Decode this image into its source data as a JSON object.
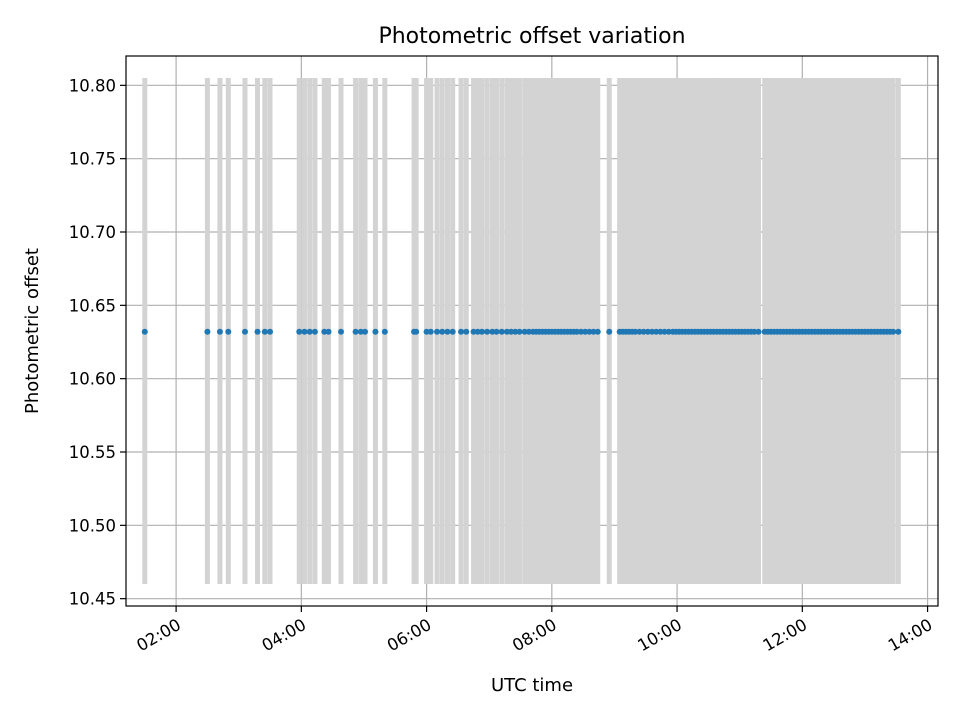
{
  "chart_data": {
    "type": "scatter",
    "title": "Photometric offset variation",
    "xlabel": "UTC time",
    "ylabel": "Photometric offset",
    "xlim": [
      "01:12",
      "14:10"
    ],
    "ylim": [
      10.445,
      10.82
    ],
    "x_ticks": [
      "02:00",
      "04:00",
      "06:00",
      "08:00",
      "10:00",
      "12:00",
      "14:00"
    ],
    "y_ticks": [
      "10.45",
      "10.50",
      "10.55",
      "10.60",
      "10.65",
      "10.70",
      "10.75",
      "10.80"
    ],
    "grid": true,
    "colors": {
      "points": "#1f77b4",
      "spans": "#d3d3d3",
      "grid": "#b0b0b0"
    },
    "span_y_range": [
      10.46,
      10.805
    ],
    "marker_value": 10.632,
    "times": [
      "01:30",
      "02:30",
      "02:42",
      "02:50",
      "03:06",
      "03:18",
      "03:25",
      "03:30",
      "03:58",
      "04:03",
      "04:08",
      "04:13",
      "04:22",
      "04:26",
      "04:38",
      "04:52",
      "04:57",
      "05:01",
      "05:11",
      "05:20",
      "05:48",
      "05:50",
      "06:00",
      "06:04",
      "06:10",
      "06:15",
      "06:20",
      "06:25",
      "06:33",
      "06:38",
      "06:45",
      "06:49",
      "06:53",
      "06:58",
      "07:03",
      "07:07",
      "07:12",
      "07:17",
      "07:21",
      "07:25",
      "07:29",
      "07:34",
      "07:38",
      "07:42",
      "07:45",
      "07:48",
      "07:51",
      "07:54",
      "07:57",
      "08:00",
      "08:03",
      "08:06",
      "08:09",
      "08:12",
      "08:15",
      "08:18",
      "08:21",
      "08:24",
      "08:28",
      "08:32",
      "08:36",
      "08:40",
      "08:44",
      "08:55",
      "09:05",
      "09:08",
      "09:11",
      "09:14",
      "09:17",
      "09:20",
      "09:24",
      "09:28",
      "09:32",
      "09:36",
      "09:40",
      "09:44",
      "09:48",
      "09:52",
      "09:56",
      "09:59",
      "10:02",
      "10:05",
      "10:08",
      "10:11",
      "10:14",
      "10:17",
      "10:20",
      "10:23",
      "10:26",
      "10:29",
      "10:32",
      "10:35",
      "10:38",
      "10:41",
      "10:44",
      "10:47",
      "10:50",
      "10:53",
      "10:56",
      "10:59",
      "11:02",
      "11:05",
      "11:08",
      "11:11",
      "11:14",
      "11:18",
      "11:24",
      "11:27",
      "11:30",
      "11:33",
      "11:36",
      "11:39",
      "11:42",
      "11:45",
      "11:48",
      "11:51",
      "11:54",
      "11:57",
      "12:00",
      "12:03",
      "12:06",
      "12:09",
      "12:12",
      "12:15",
      "12:18",
      "12:21",
      "12:24",
      "12:27",
      "12:30",
      "12:33",
      "12:36",
      "12:39",
      "12:42",
      "12:45",
      "12:48",
      "12:51",
      "12:54",
      "12:57",
      "13:00",
      "13:03",
      "13:06",
      "13:09",
      "13:12",
      "13:15",
      "13:18",
      "13:21",
      "13:24",
      "13:27",
      "13:32"
    ]
  }
}
